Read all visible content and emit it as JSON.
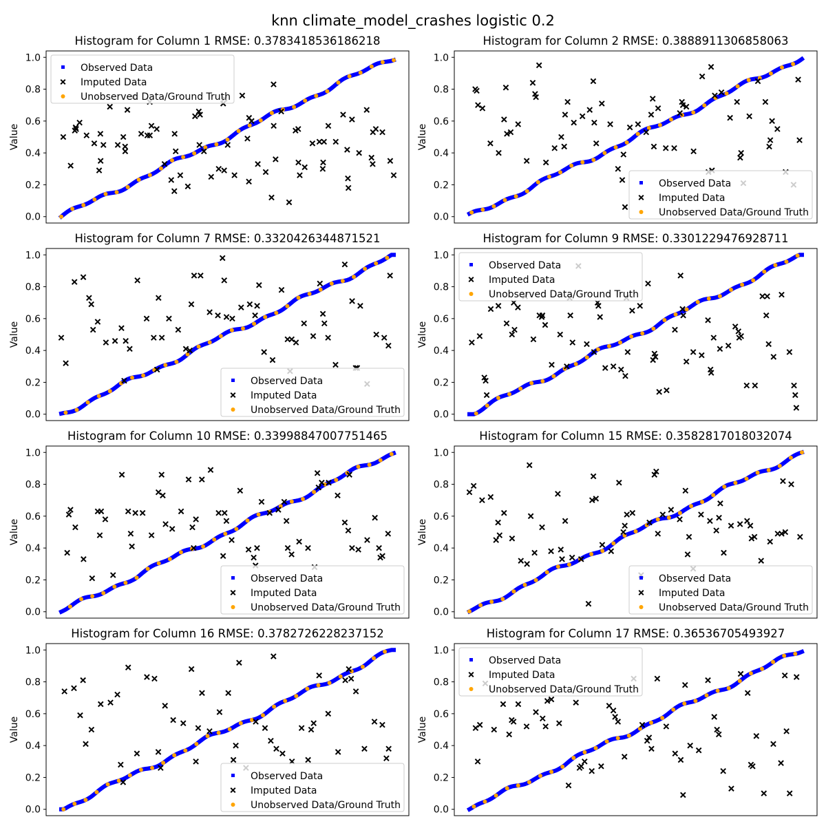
{
  "figure": {
    "suptitle": "knn climate_model_crashes logistic 0.2",
    "ylabel": "Value",
    "legend_labels": [
      "Observed Data",
      "Imputed Data",
      "Unobserved Data/Ground Truth"
    ],
    "colors": {
      "observed": "#0000ff",
      "imputed": "#000000",
      "ground_truth": "#ffa500"
    },
    "yticks": [
      "0.0",
      "0.2",
      "0.4",
      "0.6",
      "0.8",
      "1.0"
    ]
  },
  "chart_data": [
    {
      "type": "scatter",
      "title": "Histogram for Column 1 RMSE: 0.3783418536186218",
      "ylabel": "Value",
      "ylim": [
        -0.04,
        1.04
      ],
      "grid": false,
      "legend": "upper-left",
      "series": [
        {
          "name": "Observed Data",
          "marker": "square",
          "color": "#0000ff",
          "trend": "rising diagonal from 0.0 to 1.0 across the index"
        },
        {
          "name": "Imputed Data",
          "marker": "x",
          "color": "#000000",
          "values": [
            0.5,
            0.32,
            0.54,
            0.56,
            0.55,
            0.59,
            0.51,
            0.46,
            0.29,
            0.52,
            0.35,
            0.45,
            0.69,
            0.45,
            0.5,
            0.44,
            0.41,
            0.67,
            0.75,
            0.52,
            0.51,
            0.72,
            0.51,
            0.57,
            0.55,
            0.33,
            0.23,
            0.16,
            0.52,
            0.41,
            0.26,
            0.19,
            0.63,
            0.66,
            0.45,
            0.64,
            0.41,
            0.25,
            0.3,
            0.71,
            0.29,
            0.74,
            0.45,
            0.26,
            0.76,
            0.49,
            0.22,
            0.62,
            0.6,
            0.33,
            0.28,
            0.12,
            0.83,
            0.57,
            0.36,
            0.66,
            0.09,
            0.54,
            0.55,
            0.34,
            0.26,
            0.31,
            0.46,
            0.47,
            0.3,
            0.34,
            0.47,
            0.57,
            0.47,
            0.64,
            0.42,
            0.24,
            0.18,
            0.61,
            0.4,
            0.67,
            0.37,
            0.33,
            0.53,
            0.55,
            0.53,
            0.35,
            0.26
          ]
        },
        {
          "name": "Unobserved Data/Ground Truth",
          "marker": "dot",
          "color": "#ffa500",
          "trend": "lies on the same diagonal"
        }
      ]
    },
    {
      "type": "scatter",
      "title": "Histogram for Column 2 RMSE: 0.3888911306858063",
      "ylabel": "Value",
      "ylim": [
        -0.04,
        1.04
      ],
      "grid": false,
      "legend": "lower-right",
      "series": [
        {
          "name": "Observed Data",
          "marker": "square",
          "color": "#0000ff",
          "trend": "rising diagonal from 0.0 to 1.0 across the index"
        },
        {
          "name": "Imputed Data",
          "marker": "x",
          "color": "#000000",
          "values": [
            0.8,
            0.79,
            0.7,
            0.68,
            0.46,
            0.4,
            0.61,
            0.81,
            0.52,
            0.53,
            0.58,
            0.35,
            0.84,
            0.77,
            0.75,
            0.95,
            0.34,
            0.43,
            0.5,
            0.44,
            0.64,
            0.72,
            0.59,
            0.63,
            0.67,
            0.85,
            0.59,
            0.46,
            0.71,
            0.58,
            0.3,
            0.23,
            0.39,
            0.06,
            0.56,
            0.58,
            0.53,
            0.64,
            0.74,
            0.44,
            0.68,
            0.43,
            0.43,
            0.65,
            0.72,
            0.7,
            0.69,
            0.41,
            0.88,
            0.28,
            0.94,
            0.29,
            0.76,
            0.78,
            0.62,
            0.72,
            0.37,
            0.4,
            0.21,
            0.63,
            0.85,
            0.72,
            0.44,
            0.48,
            0.6,
            0.55,
            0.28,
            0.2,
            0.86,
            0.48
          ]
        },
        {
          "name": "Unobserved Data/Ground Truth",
          "marker": "dot",
          "color": "#ffa500",
          "trend": "lies on the same diagonal"
        }
      ]
    },
    {
      "type": "scatter",
      "title": "Histogram for Column 7 RMSE: 0.3320426344871521",
      "ylabel": "Value",
      "ylim": [
        -0.04,
        1.04
      ],
      "grid": false,
      "legend": "lower-right",
      "series": [
        {
          "name": "Observed Data",
          "marker": "square",
          "color": "#0000ff",
          "trend": "rising diagonal from 0.0 to 1.0 across the index"
        },
        {
          "name": "Imputed Data",
          "marker": "x",
          "color": "#000000",
          "values": [
            0.48,
            0.32,
            0.83,
            0.86,
            0.73,
            0.69,
            0.53,
            0.58,
            0.45,
            0.46,
            0.54,
            0.21,
            0.46,
            0.41,
            0.84,
            0.6,
            0.48,
            0.28,
            0.73,
            0.48,
            0.6,
            0.53,
            0.41,
            0.4,
            0.69,
            0.87,
            0.87,
            0.64,
            0.62,
            0.98,
            0.84,
            0.61,
            0.6,
            0.67,
            0.69,
            0.62,
            0.68,
            0.81,
            0.39,
            0.34,
            0.78,
            0.47,
            0.27,
            0.47,
            0.45,
            0.57,
            0.49,
            0.82,
            0.63,
            0.57,
            0.48,
            0.31,
            0.94,
            0.71,
            0.29,
            0.29,
            0.68,
            0.19,
            0.5,
            0.48,
            0.43,
            0.87
          ]
        },
        {
          "name": "Unobserved Data/Ground Truth",
          "marker": "dot",
          "color": "#ffa500",
          "trend": "lies on the same diagonal"
        }
      ]
    },
    {
      "type": "scatter",
      "title": "Histogram for Column 9 RMSE: 0.3301229476928711",
      "ylabel": "Value",
      "ylim": [
        -0.04,
        1.04
      ],
      "grid": false,
      "legend": "upper-left",
      "series": [
        {
          "name": "Observed Data",
          "marker": "square",
          "color": "#0000ff",
          "trend": "rising diagonal from 0.0 to 1.0 across the index"
        },
        {
          "name": "Imputed Data",
          "marker": "x",
          "color": "#000000",
          "values": [
            0.45,
            0.49,
            0.23,
            0.21,
            0.12,
            0.66,
            0.68,
            0.57,
            0.5,
            0.7,
            0.53,
            0.67,
            0.74,
            0.47,
            0.62,
            0.61,
            0.62,
            0.56,
            0.31,
            0.5,
            0.3,
            0.73,
            0.62,
            0.45,
            0.93,
            0.44,
            0.39,
            0.7,
            0.68,
            0.61,
            0.29,
            0.3,
            0.28,
            0.24,
            0.73,
            0.39,
            0.65,
            0.68,
            0.82,
            0.34,
            0.38,
            0.36,
            0.14,
            0.15,
            0.53,
            0.87,
            0.66,
            0.62,
            0.33,
            0.39,
            0.37,
            0.59,
            0.28,
            0.26,
            0.48,
            0.41,
            0.43,
            0.55,
            0.52,
            0.48,
            0.49,
            0.18,
            0.18,
            0.74,
            0.62,
            0.74,
            0.44,
            0.36,
            0.75,
            0.39,
            0.18,
            0.12,
            0.04
          ]
        },
        {
          "name": "Unobserved Data/Ground Truth",
          "marker": "dot",
          "color": "#ffa500",
          "trend": "lies on the same diagonal"
        }
      ]
    },
    {
      "type": "scatter",
      "title": "Histogram for Column 10 RMSE: 0.33998847007751465",
      "ylabel": "Value",
      "ylim": [
        -0.04,
        1.04
      ],
      "grid": false,
      "legend": "lower-right",
      "series": [
        {
          "name": "Observed Data",
          "marker": "square",
          "color": "#0000ff",
          "trend": "rising diagonal from 0.0 to 1.0 across the index"
        },
        {
          "name": "Imputed Data",
          "marker": "x",
          "color": "#000000",
          "values": [
            0.37,
            0.61,
            0.64,
            0.53,
            0.33,
            0.21,
            0.63,
            0.48,
            0.63,
            0.58,
            0.23,
            0.86,
            0.63,
            0.49,
            0.41,
            0.62,
            0.62,
            0.48,
            0.75,
            0.86,
            0.73,
            0.55,
            0.52,
            0.63,
            0.83,
            0.53,
            0.4,
            0.58,
            0.83,
            0.89,
            0.62,
            0.35,
            0.62,
            0.57,
            0.45,
            0.76,
            0.39,
            0.34,
            0.29,
            0.4,
            0.69,
            0.62,
            0.64,
            0.69,
            0.57,
            0.4,
            0.36,
            0.44,
            0.4,
            0.28,
            0.87,
            0.78,
            0.81,
            0.81,
            0.73,
            0.56,
            0.51,
            0.86,
            0.4,
            0.39,
            0.45,
            0.59,
            0.4,
            0.34,
            0.35,
            0.49
          ]
        },
        {
          "name": "Unobserved Data/Ground Truth",
          "marker": "dot",
          "color": "#ffa500",
          "trend": "lies on the same diagonal"
        }
      ]
    },
    {
      "type": "scatter",
      "title": "Histogram for Column 15 RMSE: 0.3582817018032074",
      "ylabel": "Value",
      "ylim": [
        -0.04,
        1.04
      ],
      "grid": false,
      "legend": "lower-right",
      "series": [
        {
          "name": "Observed Data",
          "marker": "square",
          "color": "#0000ff",
          "trend": "rising diagonal from 0.0 to 1.0 across the index"
        },
        {
          "name": "Imputed Data",
          "marker": "x",
          "color": "#000000",
          "values": [
            0.75,
            0.79,
            0.7,
            0.72,
            0.45,
            0.56,
            0.48,
            0.62,
            0.46,
            0.32,
            0.3,
            0.92,
            0.6,
            0.37,
            0.53,
            0.38,
            0.74,
            0.39,
            0.33,
            0.57,
            0.34,
            0.33,
            0.05,
            0.7,
            0.85,
            0.71,
            0.42,
            0.38,
            0.81,
            0.5,
            0.54,
            0.61,
            0.62,
            0.23,
            0.56,
            0.86,
            0.88,
            0.49,
            0.61,
            0.64,
            0.58,
            0.76,
            0.36,
            0.47,
            0.27,
            0.61,
            0.57,
            0.51,
            0.59,
            0.68,
            0.37,
            0.54,
            0.55,
            0.57,
            0.54,
            0.46,
            0.47,
            0.32,
            0.44,
            0.49,
            0.49,
            0.82,
            0.5,
            0.8,
            0.47
          ]
        },
        {
          "name": "Unobserved Data/Ground Truth",
          "marker": "dot",
          "color": "#ffa500",
          "trend": "lies on the same diagonal"
        }
      ]
    },
    {
      "type": "scatter",
      "title": "Histogram for Column 16 RMSE: 0.3782726228237152",
      "ylabel": "Value",
      "ylim": [
        -0.04,
        1.04
      ],
      "grid": false,
      "legend": "lower-right",
      "series": [
        {
          "name": "Observed Data",
          "marker": "square",
          "color": "#0000ff",
          "trend": "rising diagonal from 0.0 to 1.0 across the index"
        },
        {
          "name": "Imputed Data",
          "marker": "x",
          "color": "#000000",
          "values": [
            0.74,
            0.76,
            0.59,
            0.81,
            0.41,
            0.5,
            0.66,
            0.67,
            0.72,
            0.28,
            0.17,
            0.89,
            0.35,
            0.83,
            0.82,
            0.36,
            0.26,
            0.65,
            0.56,
            0.54,
            0.88,
            0.3,
            0.51,
            0.73,
            0.49,
            0.61,
            0.73,
            0.31,
            0.4,
            0.92,
            0.26,
            0.55,
            0.51,
            0.43,
            0.96,
            0.38,
            0.35,
            0.3,
            0.51,
            0.31,
            0.5,
            0.54,
            0.84,
            0.6,
            0.36,
            0.81,
            0.88,
            0.82,
            0.74,
            0.38,
            0.55,
            0.53,
            0.32,
            0.38
          ]
        },
        {
          "name": "Unobserved Data/Ground Truth",
          "marker": "dot",
          "color": "#ffa500",
          "trend": "lies on the same diagonal"
        }
      ]
    },
    {
      "type": "scatter",
      "title": "Histogram for Column 17 RMSE: 0.36536705493927",
      "ylabel": "Value",
      "ylim": [
        -0.04,
        1.04
      ],
      "grid": false,
      "legend": "upper-left",
      "series": [
        {
          "name": "Observed Data",
          "marker": "square",
          "color": "#0000ff",
          "trend": "rising diagonal from 0.0 to 1.0 across the index"
        },
        {
          "name": "Imputed Data",
          "marker": "x",
          "color": "#000000",
          "values": [
            0.51,
            0.3,
            0.53,
            0.79,
            0.5,
            0.66,
            0.47,
            0.56,
            0.55,
            0.66,
            0.52,
            0.61,
            0.57,
            0.52,
            0.68,
            0.69,
            0.54,
            0.15,
            0.67,
            0.26,
            0.27,
            0.3,
            0.24,
            0.27,
            0.65,
            0.62,
            0.58,
            0.55,
            0.33,
            0.82,
            0.53,
            0.43,
            0.45,
            0.38,
            0.82,
            0.52,
            0.35,
            0.31,
            0.09,
            0.78,
            0.4,
            0.37,
            0.81,
            0.58,
            0.5,
            0.47,
            0.24,
            0.13,
            0.85,
            0.73,
            0.28,
            0.27,
            0.46,
            0.1,
            0.41,
            0.29,
            0.84,
            0.49,
            0.1,
            0.83
          ]
        },
        {
          "name": "Unobserved Data/Ground Truth",
          "marker": "dot",
          "color": "#ffa500",
          "trend": "lies on the same diagonal"
        }
      ]
    }
  ]
}
